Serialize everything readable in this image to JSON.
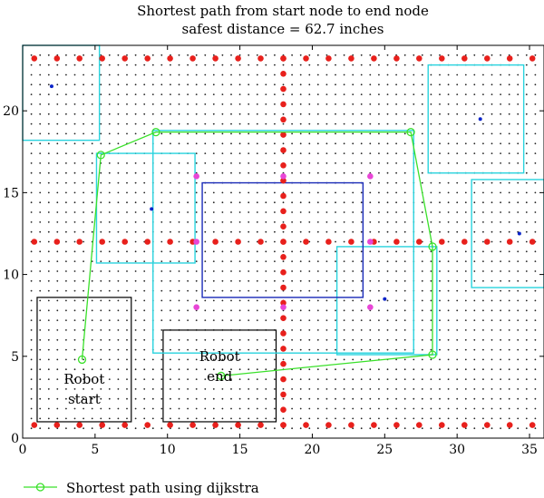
{
  "chart_data": {
    "type": "scatter",
    "title": "Shortest path from start node to end node",
    "subtitle": "safest distance = 62.7 inches",
    "xlabel": "",
    "ylabel": "",
    "xlim": [
      0,
      36
    ],
    "ylim": [
      0,
      24
    ],
    "xticks": [
      "0",
      "5",
      "10",
      "15",
      "20",
      "25",
      "30",
      "35"
    ],
    "yticks": [
      "0",
      "5",
      "10",
      "15",
      "20"
    ],
    "grid": false,
    "legend": {
      "position": "bottom-left",
      "entries": [
        "Shortest path using dijkstra"
      ]
    },
    "colors": {
      "grid_dot": "#222222",
      "wall_node": "#e8201c",
      "corner_node": "#e846d6",
      "obstacle_center": "#0a24c9",
      "path": "#3ae02a",
      "inflated_obstacle": "#29d3de",
      "obstacle": "#1a2bb8",
      "region": "#000000"
    },
    "series": [
      {
        "name": "Shortest path using dijkstra",
        "x": [
          4.1,
          5.4,
          9.2,
          26.8,
          28.3,
          28.3,
          13.7
        ],
        "y": [
          4.8,
          17.3,
          18.7,
          18.7,
          11.7,
          5.1,
          3.8
        ]
      }
    ],
    "wall_rows_y": [
      23.2,
      12.0,
      0.8
    ],
    "wall_column_x": 18.0,
    "wall_column_y_range": [
      0.8,
      23.2
    ],
    "corner_nodes": {
      "x": [
        12,
        12,
        24,
        24,
        12,
        24,
        18,
        18
      ],
      "y": [
        16,
        8,
        16,
        8,
        12,
        12,
        16,
        8
      ]
    },
    "obstacle_centers": {
      "x": [
        2.0,
        8.9,
        31.6,
        34.3,
        25.0
      ],
      "y": [
        21.5,
        14.0,
        19.5,
        12.5,
        8.5
      ]
    },
    "obstacle": {
      "x0": 12.4,
      "y0": 8.6,
      "x1": 23.5,
      "y1": 15.6
    },
    "inflated_obstacles": [
      {
        "x0": -1.0,
        "y0": 18.2,
        "x1": 5.3,
        "y1": 24.0
      },
      {
        "x0": 5.1,
        "y0": 10.7,
        "x1": 11.9,
        "y1": 17.4
      },
      {
        "x0": 9.0,
        "y0": 5.2,
        "x1": 27.0,
        "y1": 18.8
      },
      {
        "x0": 21.7,
        "y0": 5.1,
        "x1": 28.6,
        "y1": 11.7
      },
      {
        "x0": 28.0,
        "y0": 16.2,
        "x1": 34.6,
        "y1": 22.8
      },
      {
        "x0": 31.0,
        "y0": 9.2,
        "x1": 36.5,
        "y1": 15.8
      }
    ],
    "regions": [
      {
        "label": [
          "Robot",
          "start"
        ],
        "x0": 1.0,
        "y0": 1.0,
        "x1": 7.5,
        "y1": 8.6
      },
      {
        "label": [
          "Robot",
          "end"
        ],
        "x0": 9.7,
        "y0": 1.0,
        "x1": 17.5,
        "y1": 6.6
      }
    ]
  }
}
